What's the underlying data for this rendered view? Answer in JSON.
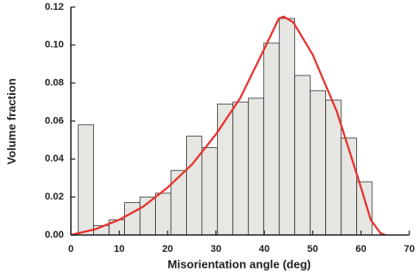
{
  "chart_data": {
    "type": "histogram",
    "xlabel": "Misorientation angle (deg)",
    "ylabel": "Volume fraction",
    "bins": [
      1.5,
      4.7,
      7.9,
      11.1,
      14.3,
      17.5,
      20.7,
      23.9,
      27.1,
      30.3,
      33.5,
      36.7,
      39.9,
      43.1,
      46.3,
      49.5,
      52.7,
      55.9,
      59.1,
      62.3
    ],
    "values": [
      0.058,
      0.005,
      0.008,
      0.017,
      0.02,
      0.022,
      0.034,
      0.052,
      0.046,
      0.069,
      0.07,
      0.072,
      0.101,
      0.114,
      0.084,
      0.076,
      0.071,
      0.051,
      0.028
    ],
    "color": "#e6e6e2",
    "line": {
      "x": [
        0,
        5,
        10,
        15,
        20,
        25,
        30,
        35,
        40,
        43,
        44,
        46,
        50,
        55,
        60,
        62,
        64,
        65
      ],
      "values": [
        0,
        0.003,
        0.008,
        0.015,
        0.025,
        0.037,
        0.053,
        0.072,
        0.098,
        0.114,
        0.115,
        0.112,
        0.095,
        0.065,
        0.025,
        0.008,
        0.001,
        0
      ],
      "color": "#e8302a"
    },
    "xlim": [
      0,
      70
    ],
    "xticks": [
      0,
      10,
      20,
      30,
      40,
      50,
      60,
      70
    ],
    "ylim": [
      0,
      0.12
    ],
    "yticks": [
      {
        "value": 0,
        "label": "0.00"
      },
      0.02,
      0.04,
      0.06,
      0.08,
      {
        "value": 0.1,
        "label": "0.10"
      },
      0.12
    ]
  }
}
